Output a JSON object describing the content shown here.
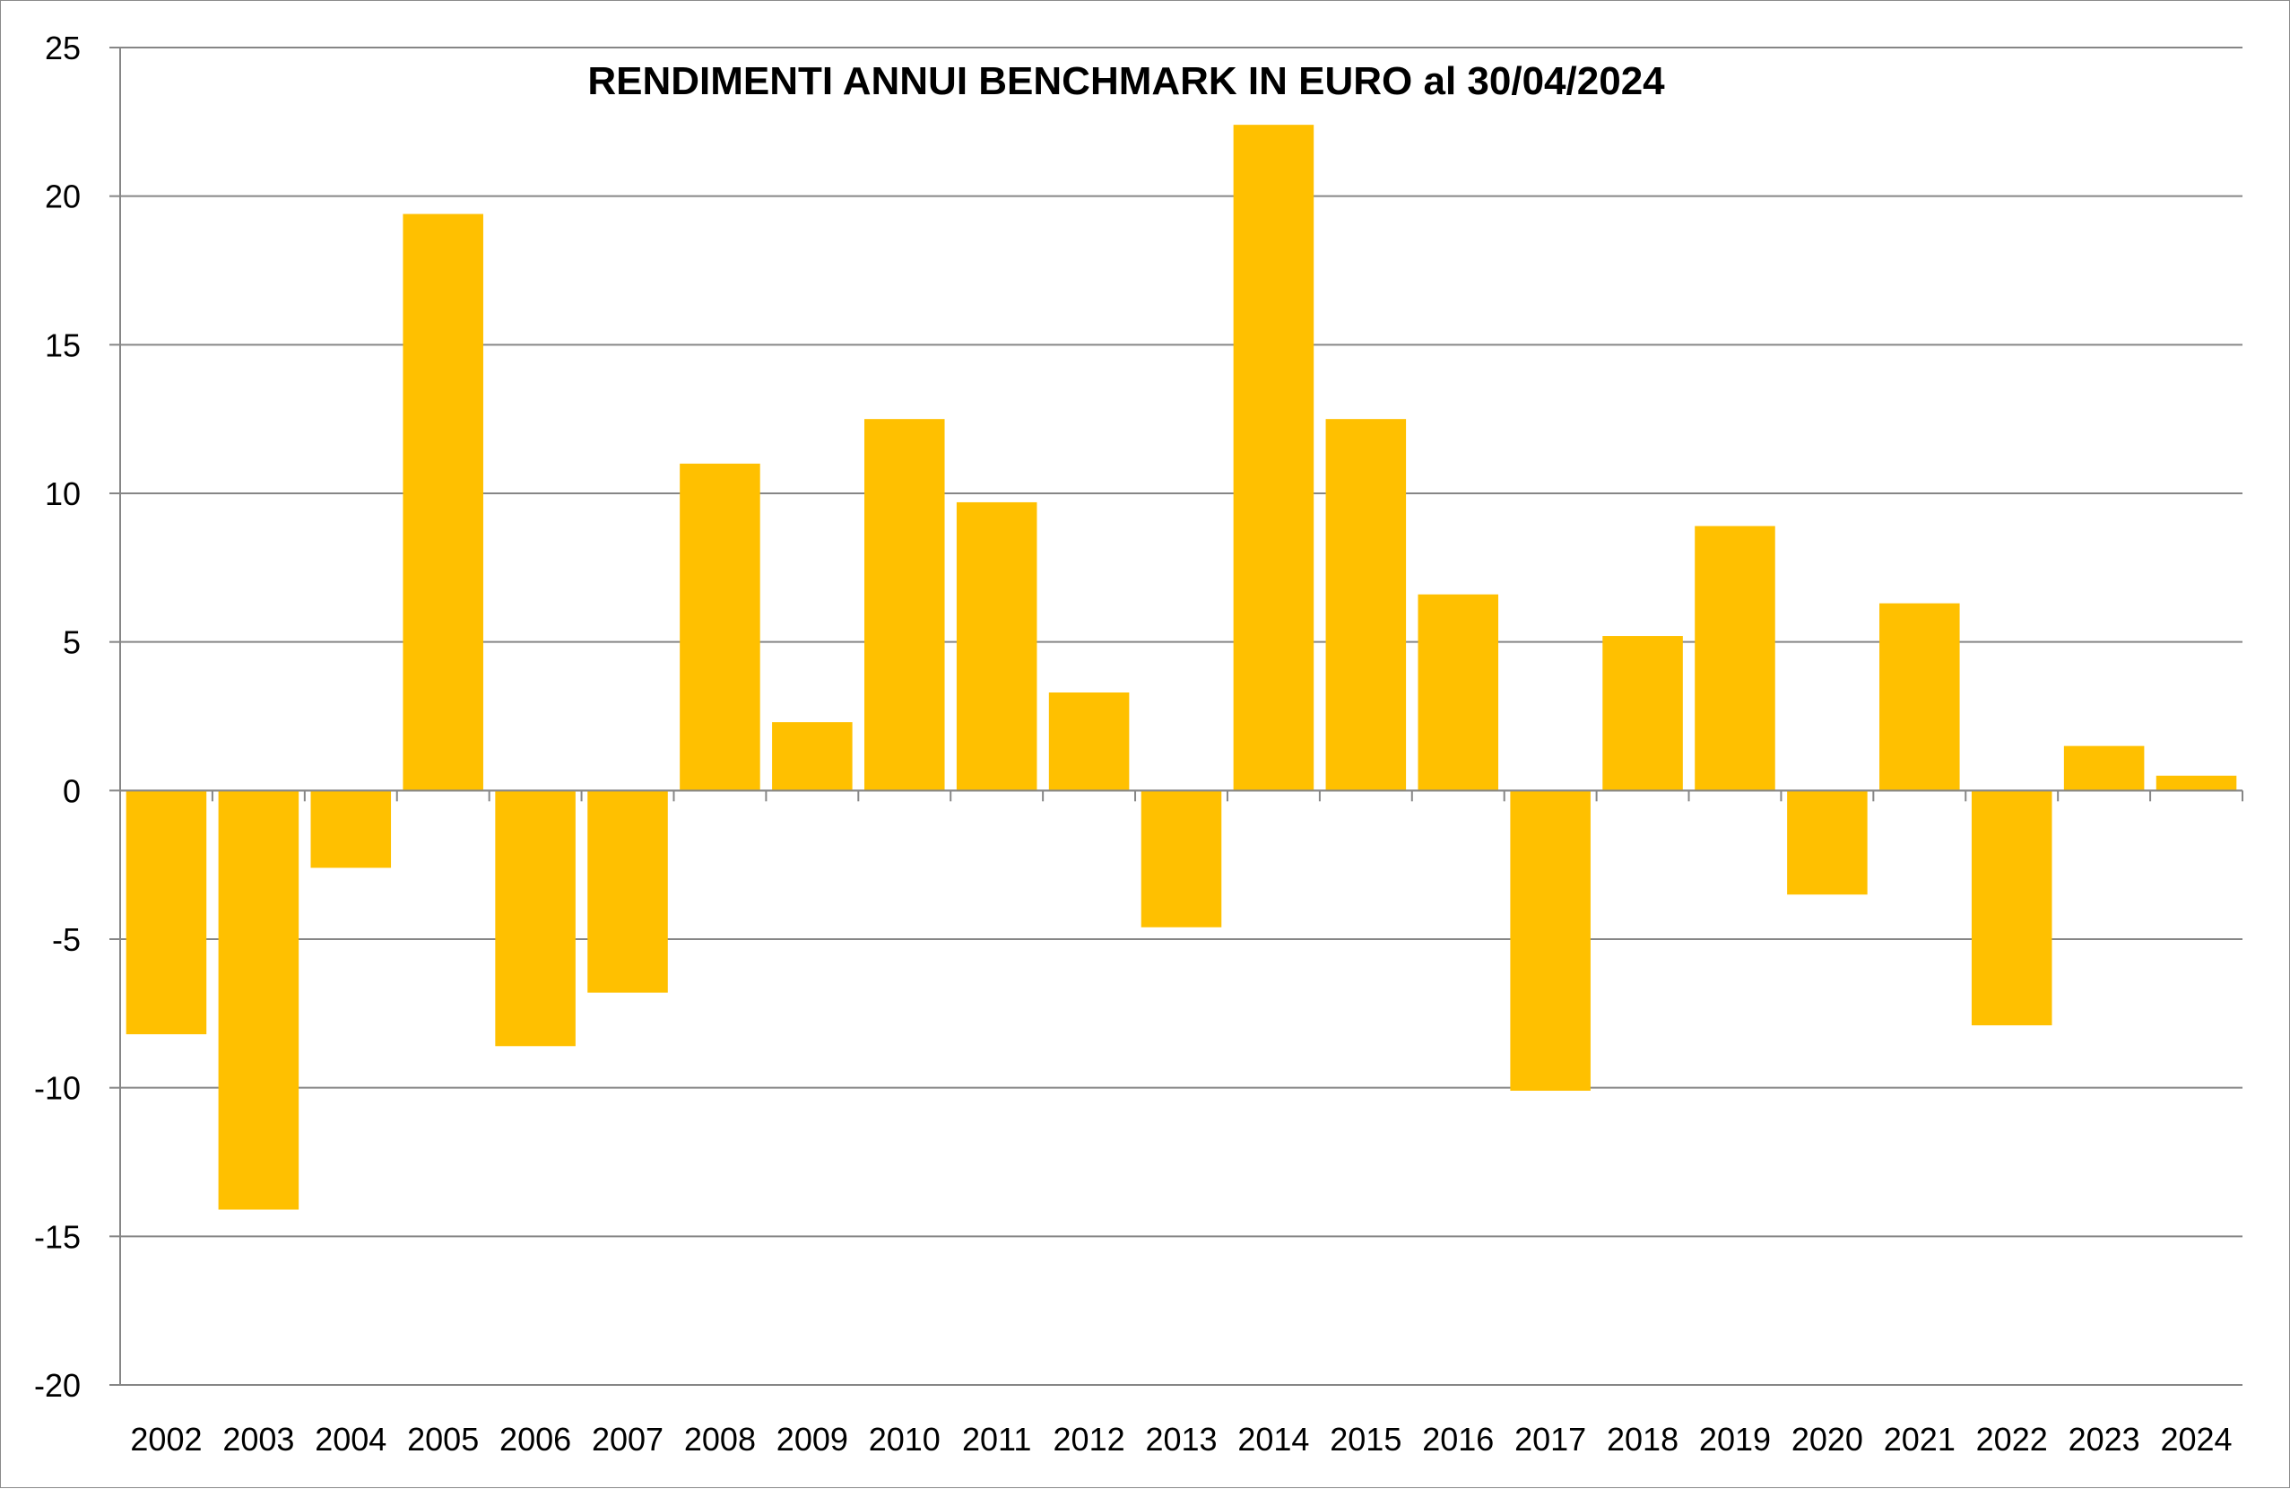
{
  "chart_data": {
    "type": "bar",
    "title": "RENDIMENTI ANNUI BENCHMARK IN EURO al 30/04/2024",
    "xlabel": "",
    "ylabel": "",
    "ylim": [
      -20,
      25
    ],
    "yticks": [
      25,
      20,
      15,
      10,
      5,
      0,
      -5,
      -10,
      -15,
      -20
    ],
    "grid": true,
    "bar_color": "#FFC000",
    "categories": [
      "2002",
      "2003",
      "2004",
      "2005",
      "2006",
      "2007",
      "2008",
      "2009",
      "2010",
      "2011",
      "2012",
      "2013",
      "2014",
      "2015",
      "2016",
      "2017",
      "2018",
      "2019",
      "2020",
      "2021",
      "2022",
      "2023",
      "2024"
    ],
    "values": [
      -8.2,
      -14.1,
      -2.6,
      19.4,
      -8.6,
      -6.8,
      11.0,
      2.3,
      12.5,
      9.7,
      3.3,
      -4.6,
      22.4,
      12.5,
      6.6,
      -10.1,
      5.2,
      8.9,
      -3.5,
      6.3,
      -7.9,
      1.5,
      0.5
    ]
  }
}
